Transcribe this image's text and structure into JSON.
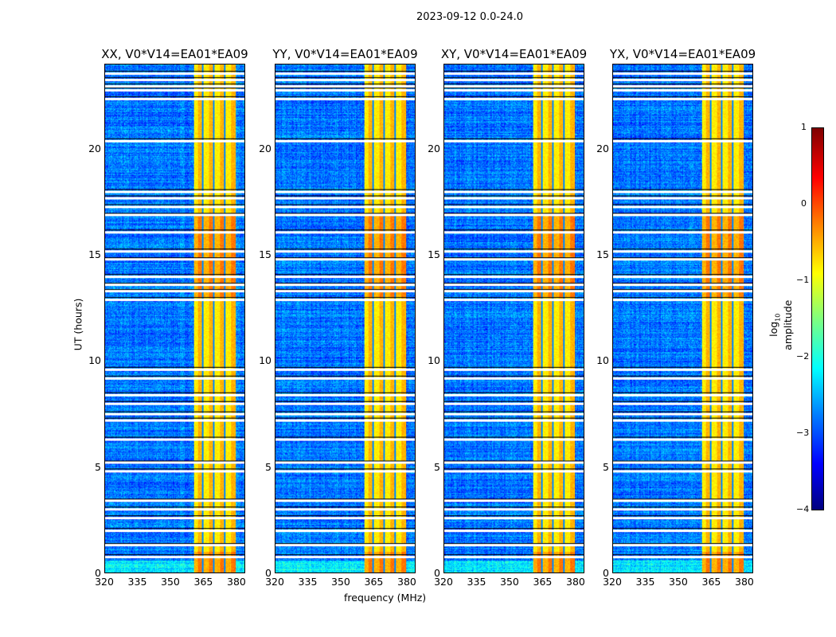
{
  "chart_data": {
    "type": "heatmap",
    "title": "2023-09-12 0.0-24.0",
    "panels": [
      {
        "title": "XX, V0*V14=EA01*EA09"
      },
      {
        "title": "YY, V0*V14=EA01*EA09"
      },
      {
        "title": "XY, V0*V14=EA01*EA09"
      },
      {
        "title": "YX, V0*V14=EA01*EA09"
      }
    ],
    "xlabel": "frequency (MHz)",
    "ylabel": "UT (hours)",
    "xlim": [
      320,
      384
    ],
    "ylim": [
      0,
      24
    ],
    "xticks": [
      "320",
      "335",
      "350",
      "365",
      "380"
    ],
    "yticks": [
      "0",
      "5",
      "10",
      "15",
      "20"
    ],
    "bright_band_mhz": [
      360.5,
      380
    ],
    "band_dividers_mhz": [
      364.8,
      369.8,
      374.9
    ],
    "background_log_amp": -2.8,
    "band_log_amp": -0.8,
    "flagged_hours": [
      0.75,
      1.3,
      2.0,
      2.6,
      3.0,
      3.4,
      4.8,
      5.2,
      6.3,
      7.2,
      7.5,
      8.0,
      8.4,
      9.2,
      9.6,
      12.9,
      13.3,
      13.6,
      14.0,
      14.8,
      15.2,
      16.1,
      16.9,
      17.3,
      17.7,
      18.0,
      20.4,
      22.4,
      22.8,
      23.0,
      23.3,
      23.6
    ],
    "colorbar": {
      "label": "log10 amplitude",
      "label_main": "log",
      "label_sub": "10",
      "label_rest": " amplitude",
      "range": [
        -4,
        1
      ],
      "ticks": [
        "1",
        "0",
        "−1",
        "−2",
        "−3",
        "−4"
      ],
      "colormap": "jet"
    }
  }
}
